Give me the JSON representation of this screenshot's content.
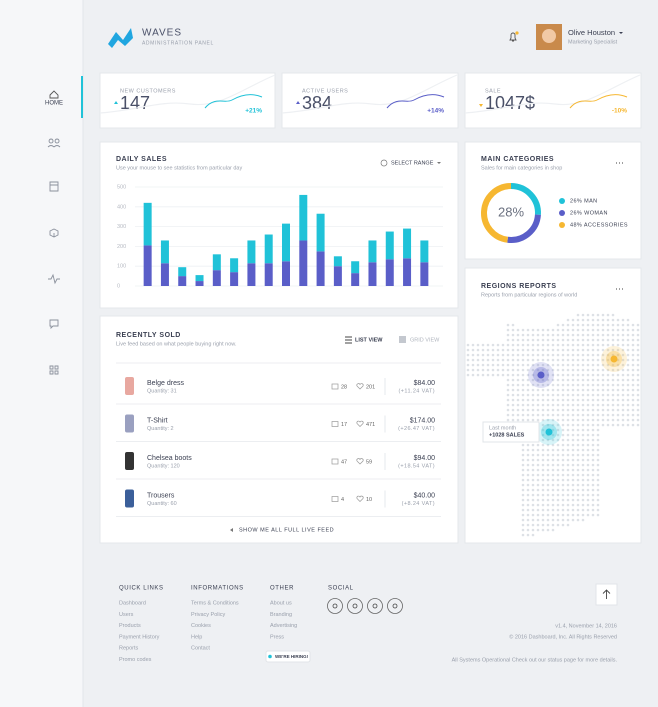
{
  "header": {
    "brand": "WAVES",
    "subtitle": "ADMINISTRATION PANEL",
    "user_name": "Olive Houston",
    "user_role": "Marketing Specialist"
  },
  "sidebar": {
    "home_label": "HOME"
  },
  "stats": [
    {
      "label": "NEW CUSTOMERS",
      "value": "147",
      "change": "+21%",
      "color": "#20c2d8"
    },
    {
      "label": "ACTIVE USERS",
      "value": "384",
      "change": "+14%",
      "color": "#5a5ec8"
    },
    {
      "label": "SALE",
      "value": "1047$",
      "change": "-10%",
      "color": "#f6b731"
    }
  ],
  "chart_data": {
    "type": "bar",
    "stacked": true,
    "title": "DAILY SALES",
    "subtitle": "Use your mouse to see statistics from particular day",
    "action": "SELECT RANGE",
    "categories": [
      null,
      null,
      null,
      null,
      null,
      null,
      null,
      null,
      null,
      null,
      null,
      null,
      null,
      null,
      null,
      null,
      null
    ],
    "series": [
      {
        "color": "#5a5ec8",
        "values": [
          205,
          115,
          50,
          25,
          80,
          70,
          115,
          115,
          125,
          230,
          175,
          100,
          65,
          120,
          135,
          140,
          120
        ]
      },
      {
        "color": "#20c2d8",
        "values": [
          215,
          115,
          45,
          30,
          80,
          70,
          115,
          145,
          190,
          230,
          190,
          50,
          60,
          110,
          140,
          150,
          110
        ]
      }
    ],
    "ylim": [
      0,
      500
    ],
    "yticks": [
      0,
      100,
      200,
      300,
      400,
      500
    ],
    "grid": true
  },
  "categories_card": {
    "title": "MAIN CATEGORIES",
    "subtitle": "Sales for main categories in shop",
    "center_label": "28%",
    "items": [
      {
        "label": "26% MAN",
        "value": 26,
        "color": "#20c2d8"
      },
      {
        "label": "26% WOMAN",
        "value": 26,
        "color": "#5a5ec8"
      },
      {
        "label": "48% ACCESSORIES",
        "value": 48,
        "color": "#f6b731"
      }
    ]
  },
  "regions": {
    "title": "REGIONS REPORTS",
    "subtitle": "Reports from particular regions of world",
    "tooltip_label": "Last month",
    "tooltip_value": "+1028 SALES"
  },
  "recently_sold": {
    "title": "RECENTLY SOLD",
    "subtitle": "Live feed based on what people buying right now.",
    "list_view": "LIST VIEW",
    "grid_view": "GRID VIEW",
    "items": [
      {
        "name": "Belge dress",
        "quantity": "Quantity: 31",
        "comments": "28",
        "likes": "201",
        "price": "$84.00",
        "vat": "(+11.24 VAT)"
      },
      {
        "name": "T-Shirt",
        "quantity": "Quantity: 2",
        "comments": "17",
        "likes": "471",
        "price": "$174.00",
        "vat": "(+26.47 VAT)"
      },
      {
        "name": "Chelsea boots",
        "quantity": "Quantity: 120",
        "comments": "47",
        "likes": "59",
        "price": "$94.00",
        "vat": "(+18.54 VAT)"
      },
      {
        "name": "Trousers",
        "quantity": "Quantity: 60",
        "comments": "4",
        "likes": "10",
        "price": "$40.00",
        "vat": "(+8.24 VAT)"
      }
    ],
    "footer_link": "SHOW ME ALL FULL LIVE FEED"
  },
  "footer": {
    "columns": [
      {
        "title": "QUICK LINKS",
        "links": [
          "Dashboard",
          "Users",
          "Products",
          "Payment History",
          "Reports",
          "Promo codes"
        ]
      },
      {
        "title": "INFORMATIONS",
        "links": [
          "Terms & Conditions",
          "Privacy Policy",
          "Cookies",
          "Help",
          "Contact"
        ]
      },
      {
        "title": "OTHER",
        "links": [
          "About us",
          "Branding",
          "Advertising",
          "Press"
        ]
      }
    ],
    "social_title": "SOCIAL",
    "hiring": "WE'RE HIRING!",
    "version": "v1.4, November 14, 2016",
    "copyright": "© 2016 Dashboard, Inc. All Rights Reserved",
    "status": "All Systems Operational Check out our status page for more details."
  }
}
